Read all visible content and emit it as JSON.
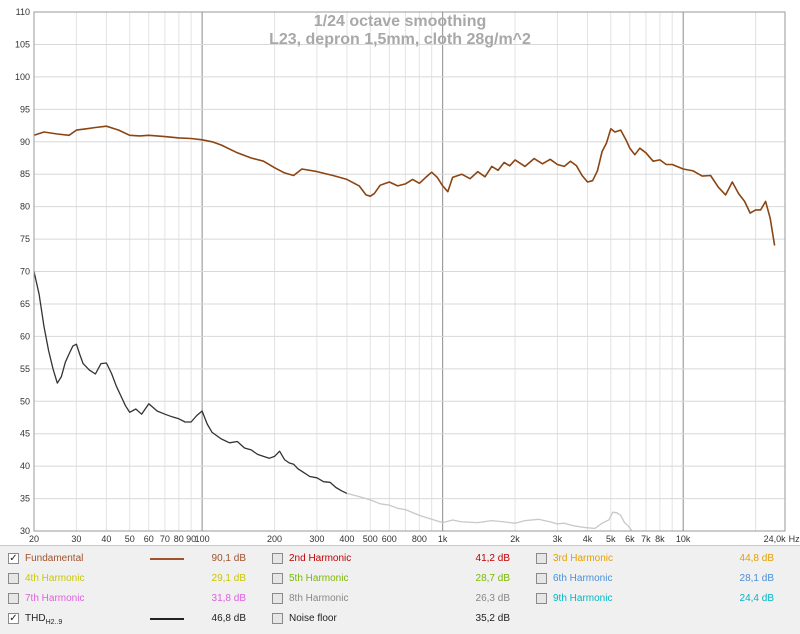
{
  "chart_data": {
    "type": "line",
    "title": "1/24 octave smoothing",
    "subtitle": "L23, depron 1,5mm, cloth 28g/m^2",
    "xscale": "log",
    "xlim": [
      20,
      26500
    ],
    "ylim": [
      30,
      110
    ],
    "grid": true,
    "x_unit": "Hz",
    "x_ticks": [
      {
        "value": 20,
        "label": "20"
      },
      {
        "value": 30,
        "label": "30"
      },
      {
        "value": 40,
        "label": "40"
      },
      {
        "value": 50,
        "label": "50"
      },
      {
        "value": 60,
        "label": "60"
      },
      {
        "value": 70,
        "label": "70"
      },
      {
        "value": 80,
        "label": "80"
      },
      {
        "value": 90,
        "label": "90"
      },
      {
        "value": 100,
        "label": "100"
      },
      {
        "value": 200,
        "label": "200"
      },
      {
        "value": 300,
        "label": "300"
      },
      {
        "value": 400,
        "label": "400"
      },
      {
        "value": 500,
        "label": "500"
      },
      {
        "value": 600,
        "label": "600"
      },
      {
        "value": 800,
        "label": "800"
      },
      {
        "value": 1000,
        "label": "1k"
      },
      {
        "value": 2000,
        "label": "2k"
      },
      {
        "value": 3000,
        "label": "3k"
      },
      {
        "value": 4000,
        "label": "4k"
      },
      {
        "value": 5000,
        "label": "5k"
      },
      {
        "value": 6000,
        "label": "6k"
      },
      {
        "value": 7000,
        "label": "7k"
      },
      {
        "value": 8000,
        "label": "8k"
      },
      {
        "value": 10000,
        "label": "10k"
      },
      {
        "value": 24000,
        "label": "24,0k"
      }
    ],
    "y_ticks": [
      {
        "value": 30,
        "label": "30"
      },
      {
        "value": 35,
        "label": "35"
      },
      {
        "value": 40,
        "label": "40"
      },
      {
        "value": 45,
        "label": "45"
      },
      {
        "value": 50,
        "label": "50"
      },
      {
        "value": 55,
        "label": "55"
      },
      {
        "value": 60,
        "label": "60"
      },
      {
        "value": 65,
        "label": "65"
      },
      {
        "value": 70,
        "label": "70"
      },
      {
        "value": 75,
        "label": "75"
      },
      {
        "value": 80,
        "label": "80"
      },
      {
        "value": 85,
        "label": "85"
      },
      {
        "value": 90,
        "label": "90"
      },
      {
        "value": 95,
        "label": "95"
      },
      {
        "value": 100,
        "label": "100"
      },
      {
        "value": 105,
        "label": "105"
      },
      {
        "value": 110,
        "label": "110"
      }
    ],
    "y_unit": "dB",
    "series": [
      {
        "name": "Fundamental",
        "color": "#8b4513",
        "x": [
          20,
          22,
          25,
          28,
          30,
          33,
          36,
          40,
          45,
          50,
          55,
          60,
          70,
          80,
          90,
          100,
          110,
          120,
          140,
          160,
          180,
          200,
          220,
          240,
          260,
          300,
          350,
          400,
          450,
          480,
          500,
          520,
          550,
          600,
          650,
          700,
          750,
          800,
          850,
          900,
          950,
          1000,
          1050,
          1100,
          1200,
          1300,
          1400,
          1500,
          1600,
          1700,
          1800,
          1900,
          2000,
          2200,
          2400,
          2600,
          2800,
          3000,
          3200,
          3400,
          3600,
          3800,
          4000,
          4200,
          4400,
          4600,
          4800,
          5000,
          5200,
          5500,
          5800,
          6000,
          6300,
          6600,
          7000,
          7500,
          8000,
          8500,
          9000,
          10000,
          11000,
          12000,
          13000,
          14000,
          15000,
          16000,
          17000,
          18000,
          19000,
          20000,
          21000,
          22000,
          23000,
          24000
        ],
        "y": [
          91.0,
          91.5,
          91.2,
          91.0,
          91.8,
          92.0,
          92.2,
          92.4,
          91.8,
          91.0,
          90.9,
          91.0,
          90.8,
          90.6,
          90.5,
          90.3,
          90.0,
          89.5,
          88.3,
          87.5,
          87.0,
          86.0,
          85.2,
          84.8,
          85.8,
          85.4,
          84.8,
          84.2,
          83.2,
          81.8,
          81.6,
          82.0,
          83.3,
          83.8,
          83.2,
          83.5,
          84.2,
          83.6,
          84.5,
          85.3,
          84.5,
          83.2,
          82.3,
          84.5,
          85.0,
          84.3,
          85.4,
          84.6,
          86.2,
          85.6,
          86.8,
          86.3,
          87.2,
          86.2,
          87.4,
          86.6,
          87.3,
          86.5,
          86.2,
          87.0,
          86.3,
          84.8,
          83.8,
          84.0,
          85.5,
          88.5,
          89.8,
          92.0,
          91.5,
          91.8,
          90.2,
          89.0,
          88.0,
          89.0,
          88.3,
          87.0,
          87.2,
          86.5,
          86.5,
          85.8,
          85.5,
          84.7,
          84.8,
          83.0,
          81.8,
          83.8,
          82.0,
          80.8,
          79.0,
          79.5,
          79.5,
          80.8,
          78.2,
          74.0
        ]
      },
      {
        "name": "THD H2..9",
        "color": "#333333",
        "x": [
          20,
          21,
          22,
          23,
          24,
          25,
          26,
          27,
          28,
          29,
          30,
          31,
          32,
          34,
          36,
          38,
          40,
          42,
          44,
          46,
          48,
          50,
          53,
          56,
          60,
          65,
          70,
          75,
          80,
          85,
          90,
          95,
          100,
          105,
          110,
          120,
          130,
          140,
          150,
          160,
          170,
          180,
          190,
          200,
          210,
          220,
          230,
          240,
          250,
          270,
          280,
          300,
          320,
          340,
          360,
          380,
          400
        ],
        "y": [
          70.0,
          66.5,
          61.5,
          57.8,
          55.0,
          52.8,
          53.8,
          56.0,
          57.3,
          58.5,
          58.8,
          57.2,
          55.8,
          54.8,
          54.2,
          55.8,
          55.9,
          54.3,
          52.3,
          50.8,
          49.3,
          48.3,
          48.8,
          48.0,
          49.6,
          48.5,
          48.0,
          47.6,
          47.3,
          46.8,
          46.8,
          47.8,
          48.5,
          46.5,
          45.2,
          44.2,
          43.6,
          43.8,
          42.8,
          42.5,
          41.8,
          41.5,
          41.2,
          41.5,
          42.3,
          41.0,
          40.5,
          40.3,
          39.6,
          38.8,
          38.4,
          38.2,
          37.6,
          37.5,
          36.7,
          36.2,
          35.8
        ]
      },
      {
        "name": "THD H2..9 (gated)",
        "color": "#c8c8c8",
        "x": [
          400,
          450,
          500,
          550,
          600,
          650,
          700,
          800,
          900,
          1000,
          1100,
          1200,
          1400,
          1600,
          1800,
          2000,
          2200,
          2500,
          2800,
          3000,
          3200,
          3500,
          3800,
          4000,
          4300,
          4600,
          4900,
          5100,
          5300,
          5500,
          5700,
          5900,
          6100
        ],
        "y": [
          35.8,
          35.3,
          34.8,
          34.2,
          34.0,
          33.5,
          33.3,
          32.4,
          31.8,
          31.3,
          31.7,
          31.4,
          31.3,
          31.6,
          31.4,
          31.2,
          31.6,
          31.8,
          31.4,
          31.1,
          31.2,
          30.8,
          30.6,
          30.5,
          30.4,
          31.2,
          31.7,
          32.9,
          32.8,
          32.4,
          31.3,
          30.8,
          30.1
        ]
      }
    ]
  },
  "legend": {
    "rows": [
      [
        {
          "name": "Fundamental",
          "value": "90,1 dB",
          "color": "#a0522d",
          "checked": true,
          "line": true
        },
        {
          "name": "2nd Harmonic",
          "value": "41,2 dB",
          "color": "#c00000",
          "checked": false,
          "line": false
        },
        {
          "name": "3rd Harmonic",
          "value": "44,8 dB",
          "color": "#e6a000",
          "checked": false,
          "line": false
        }
      ],
      [
        {
          "name": "4th Harmonic",
          "value": "29,1 dB",
          "color": "#c8c800",
          "checked": false,
          "line": false
        },
        {
          "name": "5th Harmonic",
          "value": "28,7 dB",
          "color": "#7ab800",
          "checked": false,
          "line": false
        },
        {
          "name": "6th Harmonic",
          "value": "28,1 dB",
          "color": "#4a90d9",
          "checked": false,
          "line": false
        }
      ],
      [
        {
          "name": "7th Harmonic",
          "value": "31,8 dB",
          "color": "#e060e0",
          "checked": false,
          "line": false
        },
        {
          "name": "8th Harmonic",
          "value": "26,3 dB",
          "color": "#888888",
          "checked": false,
          "line": false
        },
        {
          "name": "9th Harmonic",
          "value": "24,4 dB",
          "color": "#00b8c8",
          "checked": false,
          "line": false
        }
      ],
      [
        {
          "name": "THD",
          "sub": "H2..9",
          "value": "46,8 dB",
          "color": "#222222",
          "checked": true,
          "line": true
        },
        {
          "name": "Noise floor",
          "value": "35,2 dB",
          "color": "#222222",
          "checked": false,
          "line": false
        }
      ]
    ]
  }
}
